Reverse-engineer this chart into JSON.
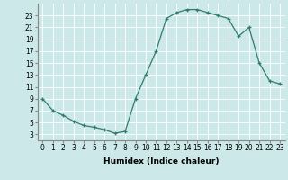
{
  "x": [
    0,
    1,
    2,
    3,
    4,
    5,
    6,
    7,
    8,
    9,
    10,
    11,
    12,
    13,
    14,
    15,
    16,
    17,
    18,
    19,
    20,
    21,
    22,
    23
  ],
  "y": [
    9,
    7,
    6.2,
    5.2,
    4.5,
    4.2,
    3.8,
    3.2,
    3.5,
    9,
    13,
    17,
    22.5,
    23.5,
    24,
    24,
    23.5,
    23,
    22.5,
    19.5,
    21,
    15,
    12,
    11.5
  ],
  "line_color": "#2e7d6e",
  "marker": "+",
  "marker_size": 3,
  "bg_color": "#cce8e8",
  "grid_color": "#ffffff",
  "xlabel": "Humidex (Indice chaleur)",
  "xlim": [
    -0.5,
    23.5
  ],
  "ylim": [
    2,
    25
  ],
  "xtick_labels": [
    "0",
    "1",
    "2",
    "3",
    "4",
    "5",
    "6",
    "7",
    "8",
    "9",
    "10",
    "11",
    "12",
    "13",
    "14",
    "15",
    "16",
    "17",
    "18",
    "19",
    "20",
    "21",
    "22",
    "23"
  ],
  "ytick_values": [
    3,
    5,
    7,
    9,
    11,
    13,
    15,
    17,
    19,
    21,
    23
  ],
  "xlabel_fontsize": 6.5,
  "tick_fontsize": 5.5
}
